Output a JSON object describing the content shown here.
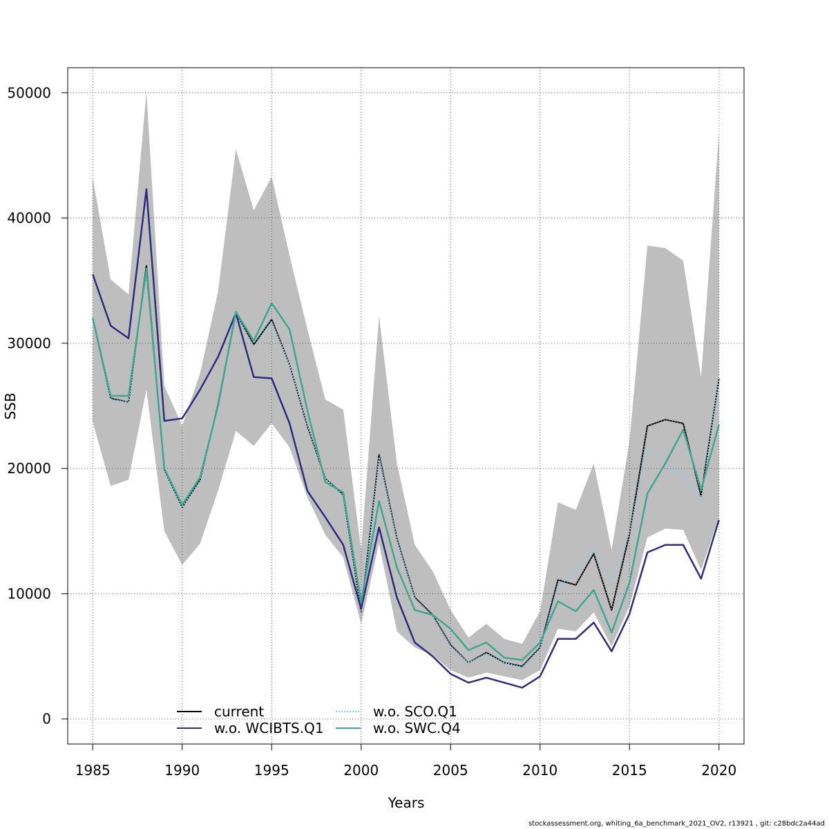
{
  "chart_data": {
    "type": "line",
    "title": "",
    "xlabel": "Years",
    "ylabel": "SSB",
    "xlim": [
      1983.6,
      2021.4
    ],
    "ylim": [
      -2000,
      52000
    ],
    "grid": true,
    "x_ticks": [
      1985,
      1990,
      1995,
      2000,
      2005,
      2010,
      2015,
      2020
    ],
    "y_ticks": [
      0,
      10000,
      20000,
      30000,
      40000,
      50000
    ],
    "legend_position": "bottom-left",
    "x": [
      1985,
      1986,
      1987,
      1988,
      1989,
      1990,
      1991,
      1992,
      1993,
      1994,
      1995,
      1996,
      1997,
      1998,
      1999,
      2000,
      2001,
      2002,
      2003,
      2004,
      2005,
      2006,
      2007,
      2008,
      2009,
      2010,
      2011,
      2012,
      2013,
      2014,
      2015,
      2016,
      2017,
      2018,
      2019,
      2020
    ],
    "band": {
      "fill_color": "#bebebe",
      "upper": [
        43200,
        35100,
        33900,
        50100,
        26600,
        23400,
        27600,
        34100,
        45500,
        40600,
        43300,
        37000,
        31100,
        25500,
        24700,
        13500,
        32200,
        20400,
        13900,
        11800,
        8700,
        6500,
        7600,
        6400,
        6000,
        8600,
        17300,
        16700,
        20400,
        13500,
        22200,
        37800,
        37600,
        36600,
        27300,
        46800
      ],
      "lower": [
        23700,
        18600,
        19100,
        26300,
        15000,
        12300,
        14000,
        18200,
        23000,
        21800,
        23600,
        21700,
        17700,
        14700,
        12900,
        7600,
        14000,
        7000,
        5700,
        5100,
        3900,
        3300,
        3700,
        3400,
        3100,
        3900,
        7200,
        7000,
        8500,
        5800,
        9000,
        14500,
        15200,
        15100,
        11900,
        16100
      ]
    },
    "series": [
      {
        "name": "current",
        "color": "#000000",
        "dash": "solid",
        "line_width": 2,
        "values": [
          32000,
          25600,
          25300,
          36200,
          19900,
          16900,
          19100,
          25100,
          32400,
          29900,
          31900,
          28300,
          23400,
          19200,
          17900,
          8600,
          21100,
          14400,
          9700,
          8300,
          5900,
          4500,
          5300,
          4500,
          4200,
          5700,
          11100,
          10700,
          13200,
          8700,
          14800,
          23400,
          23900,
          23600,
          17800,
          27200
        ]
      },
      {
        "name": "w.o. WCIBTS.Q1",
        "color": "#2e2a80",
        "dash": "solid",
        "line_width": 2.5,
        "values": [
          35500,
          31400,
          30400,
          42300,
          23800,
          24000,
          26300,
          28900,
          32400,
          27300,
          27200,
          23600,
          18200,
          16100,
          13900,
          8800,
          15300,
          9700,
          6100,
          5000,
          3600,
          2900,
          3300,
          2900,
          2500,
          3400,
          6400,
          6400,
          7700,
          5400,
          8400,
          13300,
          13900,
          13900,
          11200,
          15900
        ]
      },
      {
        "name": "w.o. SCO.Q1",
        "color": "#86cef0",
        "dash": "2,2",
        "line_width": 2,
        "values": [
          32100,
          25500,
          25300,
          35800,
          19800,
          16900,
          19000,
          24800,
          32300,
          29700,
          31700,
          28300,
          23500,
          19200,
          17800,
          8600,
          20900,
          14300,
          9600,
          8200,
          5800,
          4500,
          5200,
          4500,
          4100,
          5600,
          10600,
          11800,
          13700,
          10900,
          14900,
          21600,
          20400,
          19400,
          17400,
          27300
        ]
      },
      {
        "name": "w.o. SWC.Q4",
        "color": "#3fa78f",
        "dash": "solid",
        "line_width": 2.5,
        "values": [
          32000,
          25800,
          25800,
          35900,
          20000,
          17100,
          19300,
          25000,
          32500,
          30200,
          33200,
          31100,
          24600,
          18900,
          18100,
          9300,
          17400,
          12100,
          8700,
          8300,
          7200,
          5500,
          6100,
          4900,
          4700,
          6100,
          9400,
          8600,
          10300,
          6900,
          10900,
          18000,
          20400,
          23100,
          18300,
          23500
        ]
      }
    ]
  },
  "legend": {
    "col1": [
      "current",
      "w.o. WCIBTS.Q1"
    ],
    "col2": [
      "w.o. SCO.Q1",
      "w.o. SWC.Q4"
    ]
  },
  "footer": "stockassessment.org, whiting_6a_benchmark_2021_OV2, r13921 , git: c28bdc2a44ad"
}
